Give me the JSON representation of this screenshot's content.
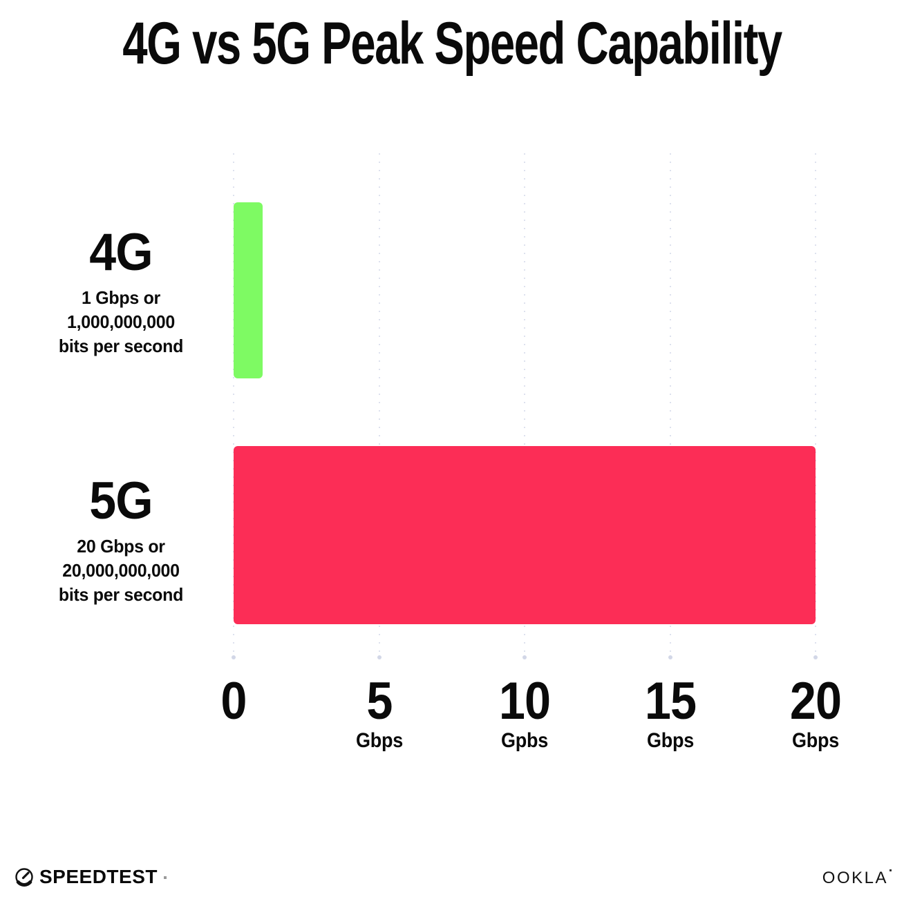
{
  "title": "4G vs 5G Peak Speed Capability",
  "chart_data": {
    "type": "bar",
    "orientation": "horizontal",
    "title": "4G vs 5G Peak Speed Capability",
    "categories": [
      "4G",
      "5G"
    ],
    "values": [
      1,
      20
    ],
    "unit": "Gbps",
    "xlim": [
      0,
      20
    ],
    "grid": "dotted-vertical",
    "legend": "none",
    "bars": [
      {
        "name": "4G",
        "value": 1,
        "color": "#7efa63",
        "description_lines": [
          "1 Gbps or",
          "1,000,000,000",
          "bits per second"
        ]
      },
      {
        "name": "5G",
        "value": 20,
        "color": "#fc2d56",
        "description_lines": [
          "20 Gbps or",
          "20,000,000,000",
          "bits per second"
        ]
      }
    ],
    "x_ticks": [
      {
        "value": 0,
        "label": "0",
        "sublabel": ""
      },
      {
        "value": 5,
        "label": "5",
        "sublabel": "Gbps"
      },
      {
        "value": 10,
        "label": "10",
        "sublabel": "Gpbs"
      },
      {
        "value": 15,
        "label": "15",
        "sublabel": "Gbps"
      },
      {
        "value": 20,
        "label": "20",
        "sublabel": "Gbps"
      }
    ]
  },
  "footer": {
    "speedtest_label": "SPEEDTEST",
    "ookla_label": "OOKLA"
  },
  "colors": {
    "bar_4g": "#7efa63",
    "bar_5g": "#fc2d56",
    "gridline": "#dde1ee",
    "gridline_end_dot": "#d2d7e7",
    "text": "#0a0a0a",
    "background": "#ffffff"
  }
}
